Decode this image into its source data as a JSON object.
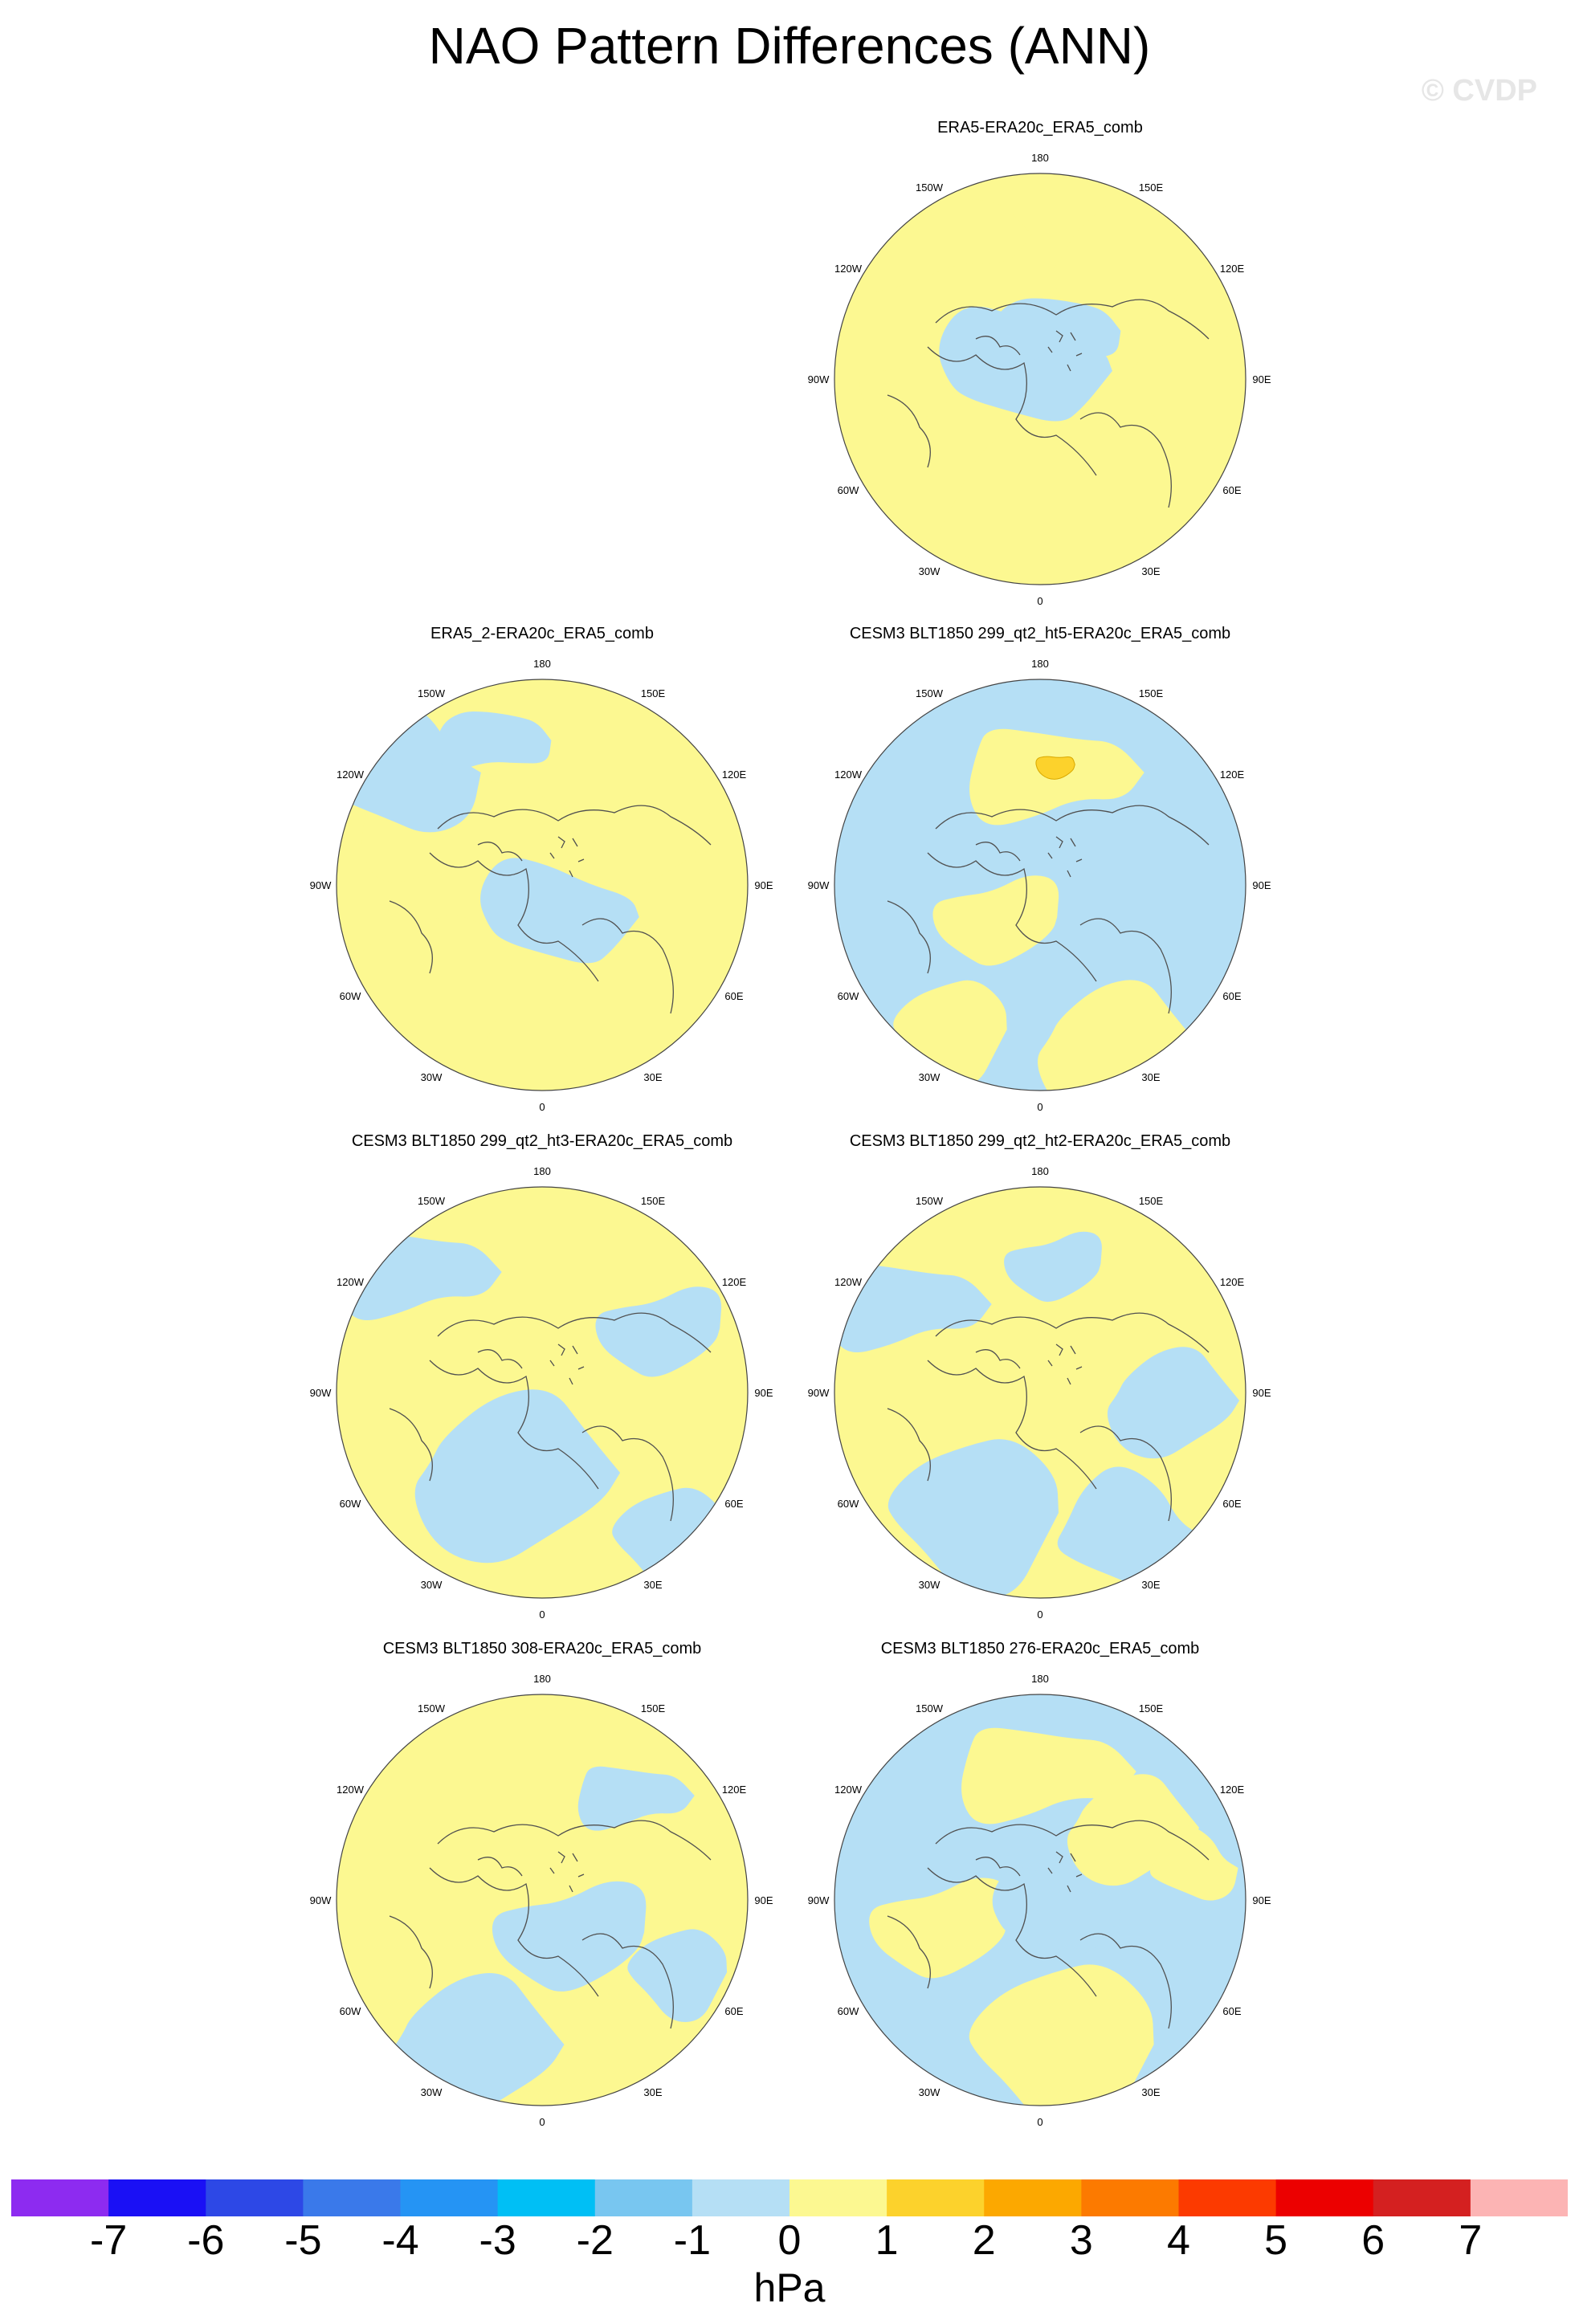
{
  "title": "NAO Pattern Differences (ANN)",
  "watermark": "© CVDP",
  "colors": {
    "negative_fill": "#b5dff5",
    "positive_fill": "#fcf891",
    "strong_positive": "#fcd22c",
    "strong_negative": "#78c6f0",
    "coast": "#505050"
  },
  "longitude_labels": [
    "180",
    "150E",
    "120E",
    "90E",
    "60E",
    "30E",
    "0",
    "30W",
    "60W",
    "90W",
    "120W",
    "150W"
  ],
  "panels": [
    {
      "title": "ERA5-ERA20c_ERA5_comb"
    },
    {
      "title": "ERA5_2-ERA20c_ERA5_comb"
    },
    {
      "title": "CESM3 BLT1850 299_qt2_ht5-ERA20c_ERA5_comb"
    },
    {
      "title": "CESM3 BLT1850 299_qt2_ht3-ERA20c_ERA5_comb"
    },
    {
      "title": "CESM3 BLT1850 299_qt2_ht2-ERA20c_ERA5_comb"
    },
    {
      "title": "CESM3 BLT1850 308-ERA20c_ERA5_comb"
    },
    {
      "title": "CESM3 BLT1850 276-ERA20c_ERA5_comb"
    }
  ],
  "colorbar": {
    "units": "hPa",
    "ticks": [
      "-7",
      "-6",
      "-5",
      "-4",
      "-3",
      "-2",
      "-1",
      "0",
      "1",
      "2",
      "3",
      "4",
      "5",
      "6",
      "7"
    ],
    "colors": [
      "#8d2bf0",
      "#1a10f5",
      "#2d48e6",
      "#3a79ea",
      "#2594f4",
      "#00bff5",
      "#78c6f0",
      "#b5dff5",
      "#fcf891",
      "#fcd22c",
      "#fca800",
      "#fc7a00",
      "#fc3a00",
      "#ec0000",
      "#d42020",
      "#fcb4b4"
    ]
  }
}
